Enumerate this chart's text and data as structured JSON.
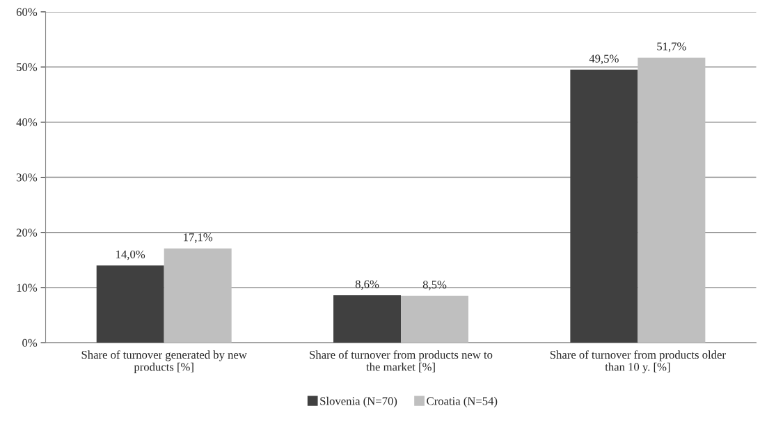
{
  "chart_data": {
    "type": "bar",
    "categories": [
      "Share of turnover generated by new\nproducts [%]",
      "Share of turnover from products new to\nthe market [%]",
      "Share of turnover from products older\nthan 10 y. [%]"
    ],
    "series": [
      {
        "name": "Slovenia (N=70)",
        "color": "#404040",
        "values": [
          14.0,
          8.6,
          49.5
        ],
        "value_labels": [
          "14,0%",
          "8,6%",
          "49,5%"
        ]
      },
      {
        "name": "Croatia (N=54)",
        "color": "#bfbfbf",
        "values": [
          17.1,
          8.5,
          51.7
        ],
        "value_labels": [
          "17,1%",
          "8,5%",
          "51,7%"
        ]
      }
    ],
    "ylim": [
      0,
      60
    ],
    "yticks": [
      {
        "value": 0,
        "label": "0%"
      },
      {
        "value": 10,
        "label": "10%"
      },
      {
        "value": 20,
        "label": "20%"
      },
      {
        "value": 30,
        "label": "30%"
      },
      {
        "value": 40,
        "label": "40%"
      },
      {
        "value": 50,
        "label": "50%"
      },
      {
        "value": 60,
        "label": "60%"
      }
    ],
    "grid": "y",
    "legend": "bottom"
  }
}
